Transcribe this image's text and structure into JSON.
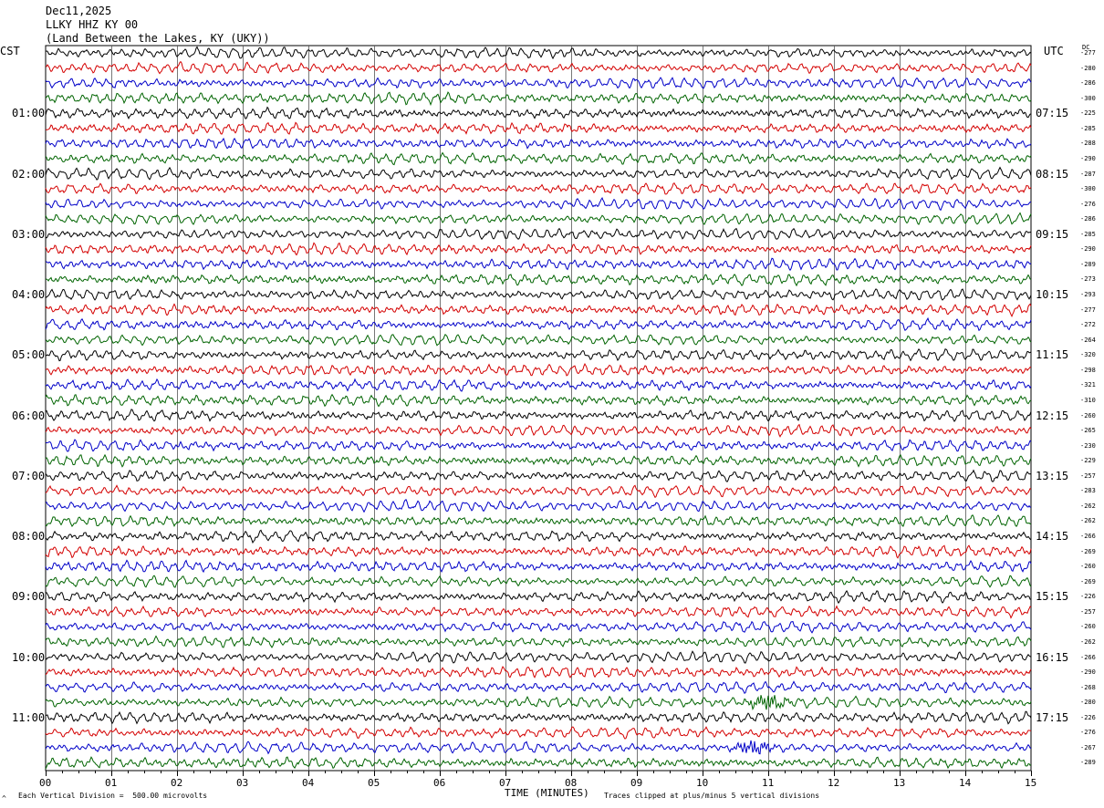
{
  "header": {
    "date": "Dec11,2025",
    "station": "LLKY HHZ KY 00",
    "location": "(Land Between the Lakes, KY (UKY))"
  },
  "left_tz": "CST",
  "right_tz": "UTC",
  "dc_label": "DC",
  "footer": {
    "left_note": "Each Vertical Division =  500.00 microvolts",
    "right_note": "Traces clipped at plus/minus 5 vertical divisions",
    "corner_mark": "^"
  },
  "colors": {
    "trace_cycle": [
      "#000000",
      "#d40000",
      "#0000c8",
      "#006400"
    ],
    "grid": "#000000",
    "background": "#ffffff"
  },
  "chart_data": {
    "type": "line",
    "title": "LLKY HHZ KY 00",
    "xlabel": "TIME (MINUTES)",
    "ylabel": "",
    "xlim": [
      0,
      15
    ],
    "x_ticks": [
      "00",
      "01",
      "02",
      "03",
      "04",
      "05",
      "06",
      "07",
      "08",
      "09",
      "10",
      "11",
      "12",
      "13",
      "14",
      "15"
    ],
    "left_hour_labels": [
      "01:00",
      "02:00",
      "03:00",
      "04:00",
      "05:00",
      "06:00",
      "07:00",
      "08:00",
      "09:00",
      "10:00",
      "11:00"
    ],
    "right_hour_labels": [
      "07:15",
      "08:15",
      "09:15",
      "10:15",
      "11:15",
      "12:15",
      "13:15",
      "14:15",
      "15:15",
      "16:15",
      "17:15"
    ],
    "rows_per_hour": 4,
    "row_count": 48,
    "dc_offsets": [
      -277,
      -280,
      -286,
      -300,
      -225,
      -285,
      -288,
      -290,
      -287,
      -300,
      -276,
      -286,
      -285,
      -290,
      -289,
      -273,
      -293,
      -277,
      -272,
      -264,
      -320,
      -298,
      -321,
      -310,
      -260,
      -265,
      -230,
      -229,
      -257,
      -283,
      -262,
      -262,
      -266,
      -269,
      -260,
      -269,
      -226,
      -257,
      -260,
      -262,
      -266,
      -290,
      -268,
      -280,
      -226,
      -276,
      -267,
      -289
    ],
    "events": [
      {
        "row": 46,
        "minute": 10.8,
        "note": "burst"
      },
      {
        "row": 43,
        "minute": 11.0,
        "note": "burst"
      }
    ]
  }
}
